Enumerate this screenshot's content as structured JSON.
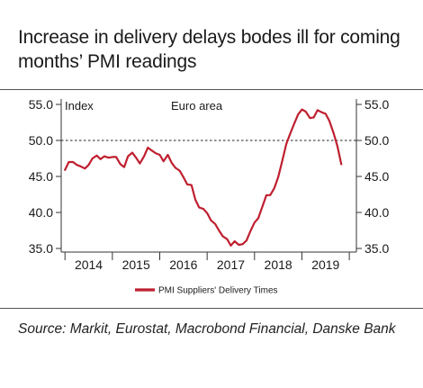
{
  "title": "Increase in delivery delays bodes ill for coming months’ PMI readings",
  "source": "Source: Markit, Eurostat, Macrobond Financial, Danske Bank",
  "colors": {
    "series": "#bf1f2f",
    "text": "#1a1a1a",
    "rule": "#555555"
  },
  "chart_data": {
    "type": "line",
    "unit_label": "Index",
    "region_label": "Euro area",
    "ylim": [
      34.5,
      56
    ],
    "y_ticks": [
      35.0,
      40.0,
      45.0,
      50.0,
      55.0
    ],
    "y_tick_labels": [
      "35.0",
      "40.0",
      "45.0",
      "50.0",
      "55.0"
    ],
    "xlim": [
      2013.92,
      2020.15
    ],
    "x_year_labels": [
      "2014",
      "2015",
      "2016",
      "2017",
      "2018",
      "2019"
    ],
    "reference_line": {
      "y": 50.0,
      "style": "dashed"
    },
    "legend": {
      "position": "bottom-center"
    },
    "series": [
      {
        "name": "PMI Suppliers' Delivery Times",
        "color": "#bf1f2f",
        "x": [
          2014.0,
          2014.08,
          2014.17,
          2014.25,
          2014.33,
          2014.42,
          2014.5,
          2014.58,
          2014.67,
          2014.75,
          2014.83,
          2014.92,
          2015.0,
          2015.08,
          2015.17,
          2015.25,
          2015.33,
          2015.42,
          2015.5,
          2015.58,
          2015.67,
          2015.75,
          2015.83,
          2015.92,
          2016.0,
          2016.08,
          2016.17,
          2016.25,
          2016.33,
          2016.42,
          2016.5,
          2016.58,
          2016.67,
          2016.75,
          2016.83,
          2016.92,
          2017.0,
          2017.08,
          2017.17,
          2017.25,
          2017.33,
          2017.42,
          2017.5,
          2017.58,
          2017.67,
          2017.75,
          2017.83,
          2017.92,
          2018.0,
          2018.08,
          2018.17,
          2018.25,
          2018.33,
          2018.42,
          2018.5,
          2018.58,
          2018.67,
          2018.75,
          2018.83,
          2018.92,
          2019.0,
          2019.08,
          2019.17,
          2019.25,
          2019.33,
          2019.42,
          2019.5,
          2019.58,
          2019.67,
          2019.75,
          2019.83
        ],
        "values": [
          45.9,
          47.0,
          47.0,
          46.6,
          46.4,
          46.1,
          46.6,
          47.5,
          47.9,
          47.4,
          47.8,
          47.6,
          47.7,
          47.7,
          46.7,
          46.3,
          47.8,
          48.3,
          47.6,
          46.8,
          47.8,
          49.0,
          48.6,
          48.2,
          48.0,
          47.1,
          48.0,
          46.9,
          46.2,
          45.8,
          44.9,
          43.9,
          43.8,
          41.8,
          40.7,
          40.5,
          39.9,
          38.9,
          38.4,
          37.5,
          36.7,
          36.3,
          35.4,
          36.0,
          35.5,
          35.6,
          36.1,
          37.5,
          38.6,
          39.2,
          40.9,
          42.4,
          42.4,
          43.4,
          44.9,
          47.0,
          49.5,
          50.9,
          52.2,
          53.6,
          54.3,
          54.0,
          53.1,
          53.2,
          54.2,
          53.9,
          53.7,
          52.7,
          51.0,
          49.2,
          46.7
        ]
      }
    ]
  }
}
